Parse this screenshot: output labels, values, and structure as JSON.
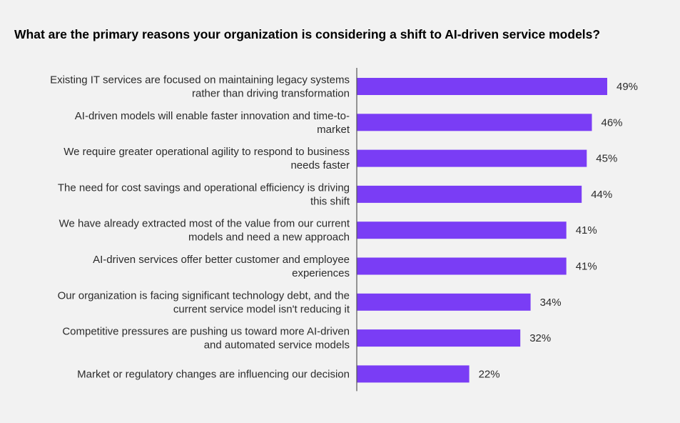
{
  "chart_data": {
    "type": "bar",
    "orientation": "horizontal",
    "title": "What are the primary reasons your organization is considering a shift to AI-driven service models?",
    "categories": [
      [
        "Existing IT services are focused on maintaining legacy systems",
        "rather than driving transformation"
      ],
      [
        "AI-driven models will enable faster innovation and time-to-",
        "market"
      ],
      [
        "We require greater operational agility to respond to business",
        "needs faster"
      ],
      [
        "The need for cost savings and operational efficiency is driving",
        "this shift"
      ],
      [
        "We have already extracted most of the value from our current",
        "models and need a new approach"
      ],
      [
        "AI-driven services offer better customer and employee",
        "experiences"
      ],
      [
        "Our organization is facing significant technology debt, and the",
        "current service model isn't reducing it"
      ],
      [
        "Competitive pressures are pushing us toward more AI-driven",
        "and automated service models"
      ],
      [
        "Market or regulatory changes are influencing our decision"
      ]
    ],
    "values": [
      49,
      46,
      45,
      44,
      41,
      41,
      34,
      32,
      22
    ],
    "value_labels": [
      "49%",
      "46%",
      "45%",
      "44%",
      "41%",
      "41%",
      "34%",
      "32%",
      "22%"
    ],
    "unit": "%",
    "xlim": [
      0,
      49
    ],
    "bar_color": "#7a3df5",
    "grid": false,
    "legend": "none"
  }
}
